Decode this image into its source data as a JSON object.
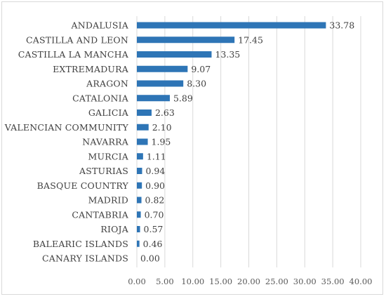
{
  "chart_data": {
    "type": "bar",
    "orientation": "horizontal",
    "title": "",
    "xlabel": "",
    "ylabel": "",
    "categories": [
      "ANDALUSIA",
      "CASTILLA AND LEON",
      "CASTILLA LA MANCHA",
      "EXTREMADURA",
      "ARAGON",
      "CATALONIA",
      "GALICIA",
      "VALENCIAN COMMUNITY",
      "NAVARRA",
      "MURCIA",
      "ASTURIAS",
      "BASQUE COUNTRY",
      "MADRID",
      "CANTABRIA",
      "RIOJA",
      "BALEARIC ISLANDS",
      "CANARY ISLANDS"
    ],
    "values": [
      33.78,
      17.45,
      13.35,
      9.07,
      8.3,
      5.89,
      2.63,
      2.1,
      1.95,
      1.11,
      0.94,
      0.9,
      0.82,
      0.7,
      0.57,
      0.46,
      0.0
    ],
    "value_labels": [
      "33.78",
      "17.45",
      "13.35",
      "9.07",
      "8.30",
      "5.89",
      "2.63",
      "2.10",
      "1.95",
      "1.11",
      "0.94",
      "0.90",
      "0.82",
      "0.70",
      "0.57",
      "0.46",
      "0.00"
    ],
    "xlim": [
      0,
      40
    ],
    "x_ticks": [
      0,
      5,
      10,
      15,
      20,
      25,
      30,
      35,
      40
    ],
    "x_tick_labels": [
      "0.00",
      "5.00",
      "10.00",
      "15.00",
      "20.00",
      "25.00",
      "30.00",
      "35.00",
      "40.00"
    ],
    "grid": "vertical",
    "legend": "none",
    "bar_color": "#2e75b6",
    "grid_color": "#d9d9d9",
    "text_color": "#404040"
  }
}
